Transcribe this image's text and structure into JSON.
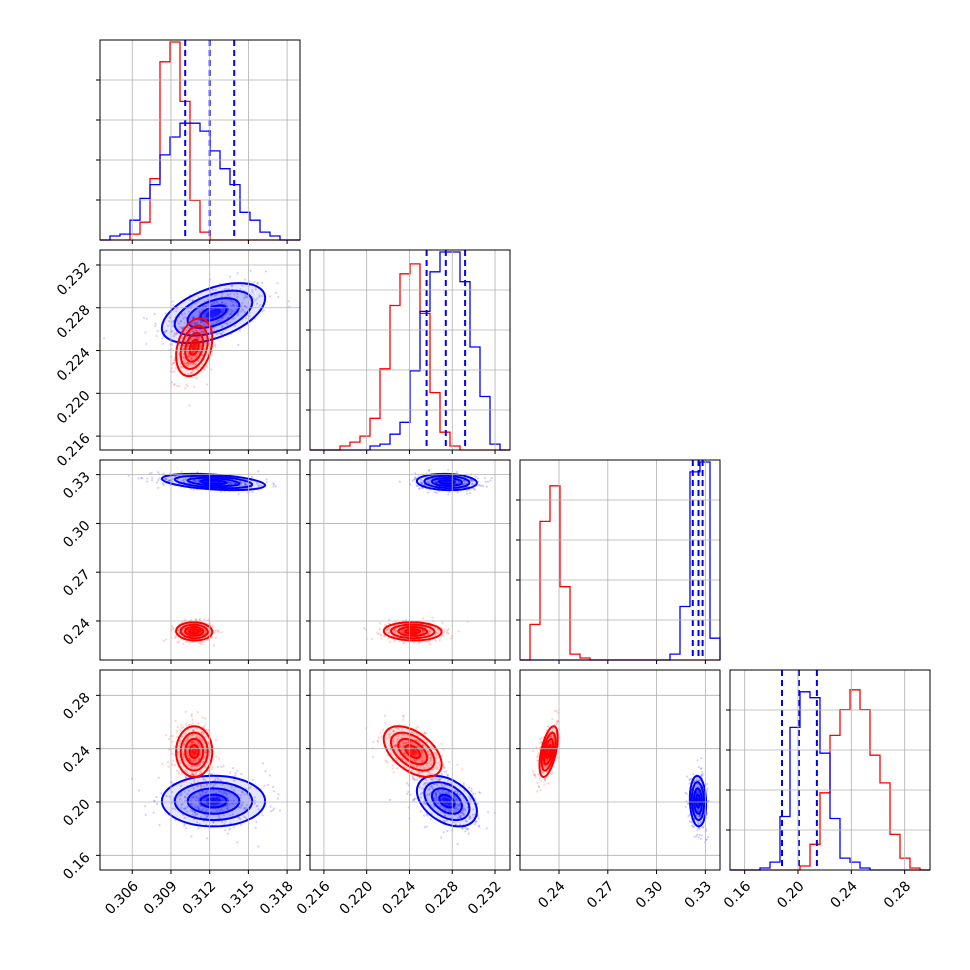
{
  "chart_data": {
    "type": "corner",
    "series": [
      {
        "name": "",
        "color": "#ff0000"
      },
      {
        "name": "",
        "color": "#0000ff"
      }
    ],
    "axes": [
      {
        "ticks": [
          0.306,
          0.309,
          0.312,
          0.315,
          0.318
        ],
        "labels": [
          "0.306",
          "0.309",
          "0.312",
          "0.315",
          "0.318"
        ],
        "range": [
          0.3035,
          0.319
        ]
      },
      {
        "ticks": [
          0.216,
          0.22,
          0.224,
          0.228,
          0.232
        ],
        "labels": [
          "0.216",
          "0.220",
          "0.224",
          "0.228",
          "0.232"
        ],
        "range": [
          0.2147,
          0.2334
        ]
      },
      {
        "ticks": [
          0.24,
          0.27,
          0.3,
          0.33
        ],
        "labels": [
          "0.24",
          "0.27",
          "0.30",
          "0.33"
        ],
        "range": [
          0.216,
          0.339
        ]
      },
      {
        "ticks": [
          0.16,
          0.2,
          0.24,
          0.28
        ],
        "labels": [
          "0.16",
          "0.20",
          "0.24",
          "0.28"
        ],
        "range": [
          0.149,
          0.299
        ]
      }
    ],
    "quantiles_blue": [
      [
        0.3101,
        0.312,
        0.3139
      ],
      [
        0.2256,
        0.2274,
        0.2292
      ],
      [
        0.3223,
        0.3258,
        0.3283
      ],
      [
        0.188,
        0.2007,
        0.2142
      ]
    ],
    "histograms": [
      {
        "bins": [
          0.3035,
          0.319
        ],
        "red": [
          0,
          0,
          0,
          0.03,
          0.09,
          0.31,
          0.9,
          1.0,
          0.7,
          0.2,
          0.04,
          0,
          0,
          0,
          0,
          0,
          0,
          0,
          0,
          0
        ],
        "blue": [
          0,
          0.02,
          0.03,
          0.1,
          0.21,
          0.28,
          0.43,
          0.52,
          0.59,
          0.59,
          0.55,
          0.45,
          0.36,
          0.28,
          0.14,
          0.1,
          0.04,
          0.02,
          0,
          0
        ]
      },
      {
        "bins": [
          0.2147,
          0.2334
        ],
        "red": [
          0,
          0,
          0,
          0.02,
          0.04,
          0.07,
          0.16,
          0.41,
          0.73,
          0.89,
          0.94,
          0.69,
          0.29,
          0.09,
          0.02,
          0,
          0,
          0,
          0,
          0
        ],
        "blue": [
          0,
          0,
          0,
          0,
          0,
          0,
          0.02,
          0.03,
          0.08,
          0.14,
          0.4,
          0.7,
          0.9,
          1.0,
          1.0,
          0.85,
          0.52,
          0.27,
          0.03,
          0
        ]
      },
      {
        "bins": [
          0.216,
          0.339
        ],
        "red": [
          0,
          0.18,
          0.7,
          0.88,
          0.37,
          0.03,
          0.01,
          0,
          0,
          0,
          0,
          0,
          0,
          0,
          0,
          0,
          0,
          0,
          0,
          0
        ],
        "blue": [
          0,
          0,
          0,
          0,
          0,
          0,
          0,
          0,
          0,
          0,
          0,
          0,
          0,
          0,
          0,
          0.03,
          0.27,
          0.95,
          1.0,
          0.11
        ]
      },
      {
        "bins": [
          0.149,
          0.299
        ],
        "red": [
          0,
          0,
          0,
          0,
          0,
          0,
          0,
          0.02,
          0.13,
          0.39,
          0.68,
          0.81,
          0.91,
          0.81,
          0.58,
          0.44,
          0.18,
          0.06,
          0.01,
          0
        ],
        "blue": [
          0,
          0,
          0,
          0.01,
          0.04,
          0.27,
          0.72,
          0.9,
          0.87,
          0.59,
          0.26,
          0.06,
          0.04,
          0.01,
          0,
          0,
          0,
          0,
          0,
          0
        ]
      }
    ],
    "populations": {
      "red": [
        {
          "mean": 0.3108,
          "sd": 0.0007
        },
        {
          "mean": 0.2243,
          "sd": 0.00135
        },
        {
          "mean": 0.2336,
          "sd": 0.0028
        },
        {
          "mean": 0.2378,
          "sd": 0.0095
        }
      ],
      "blue": [
        {
          "mean": 0.3123,
          "sd": 0.002
        },
        {
          "mean": 0.2275,
          "sd": 0.0014
        },
        {
          "mean": 0.3255,
          "sd": 0.0025
        },
        {
          "mean": 0.2007,
          "sd": 0.0095
        }
      ]
    },
    "correlations": {
      "red": {
        "1,0": 0.3,
        "2,0": -0.05,
        "2,1": -0.05,
        "3,0": 0.0,
        "3,1": -0.5,
        "3,2": 0.55
      },
      "blue": {
        "1,0": 0.5,
        "2,0": -0.4,
        "2,1": -0.1,
        "3,0": 0.0,
        "3,1": -0.4,
        "3,2": -0.1
      }
    }
  }
}
